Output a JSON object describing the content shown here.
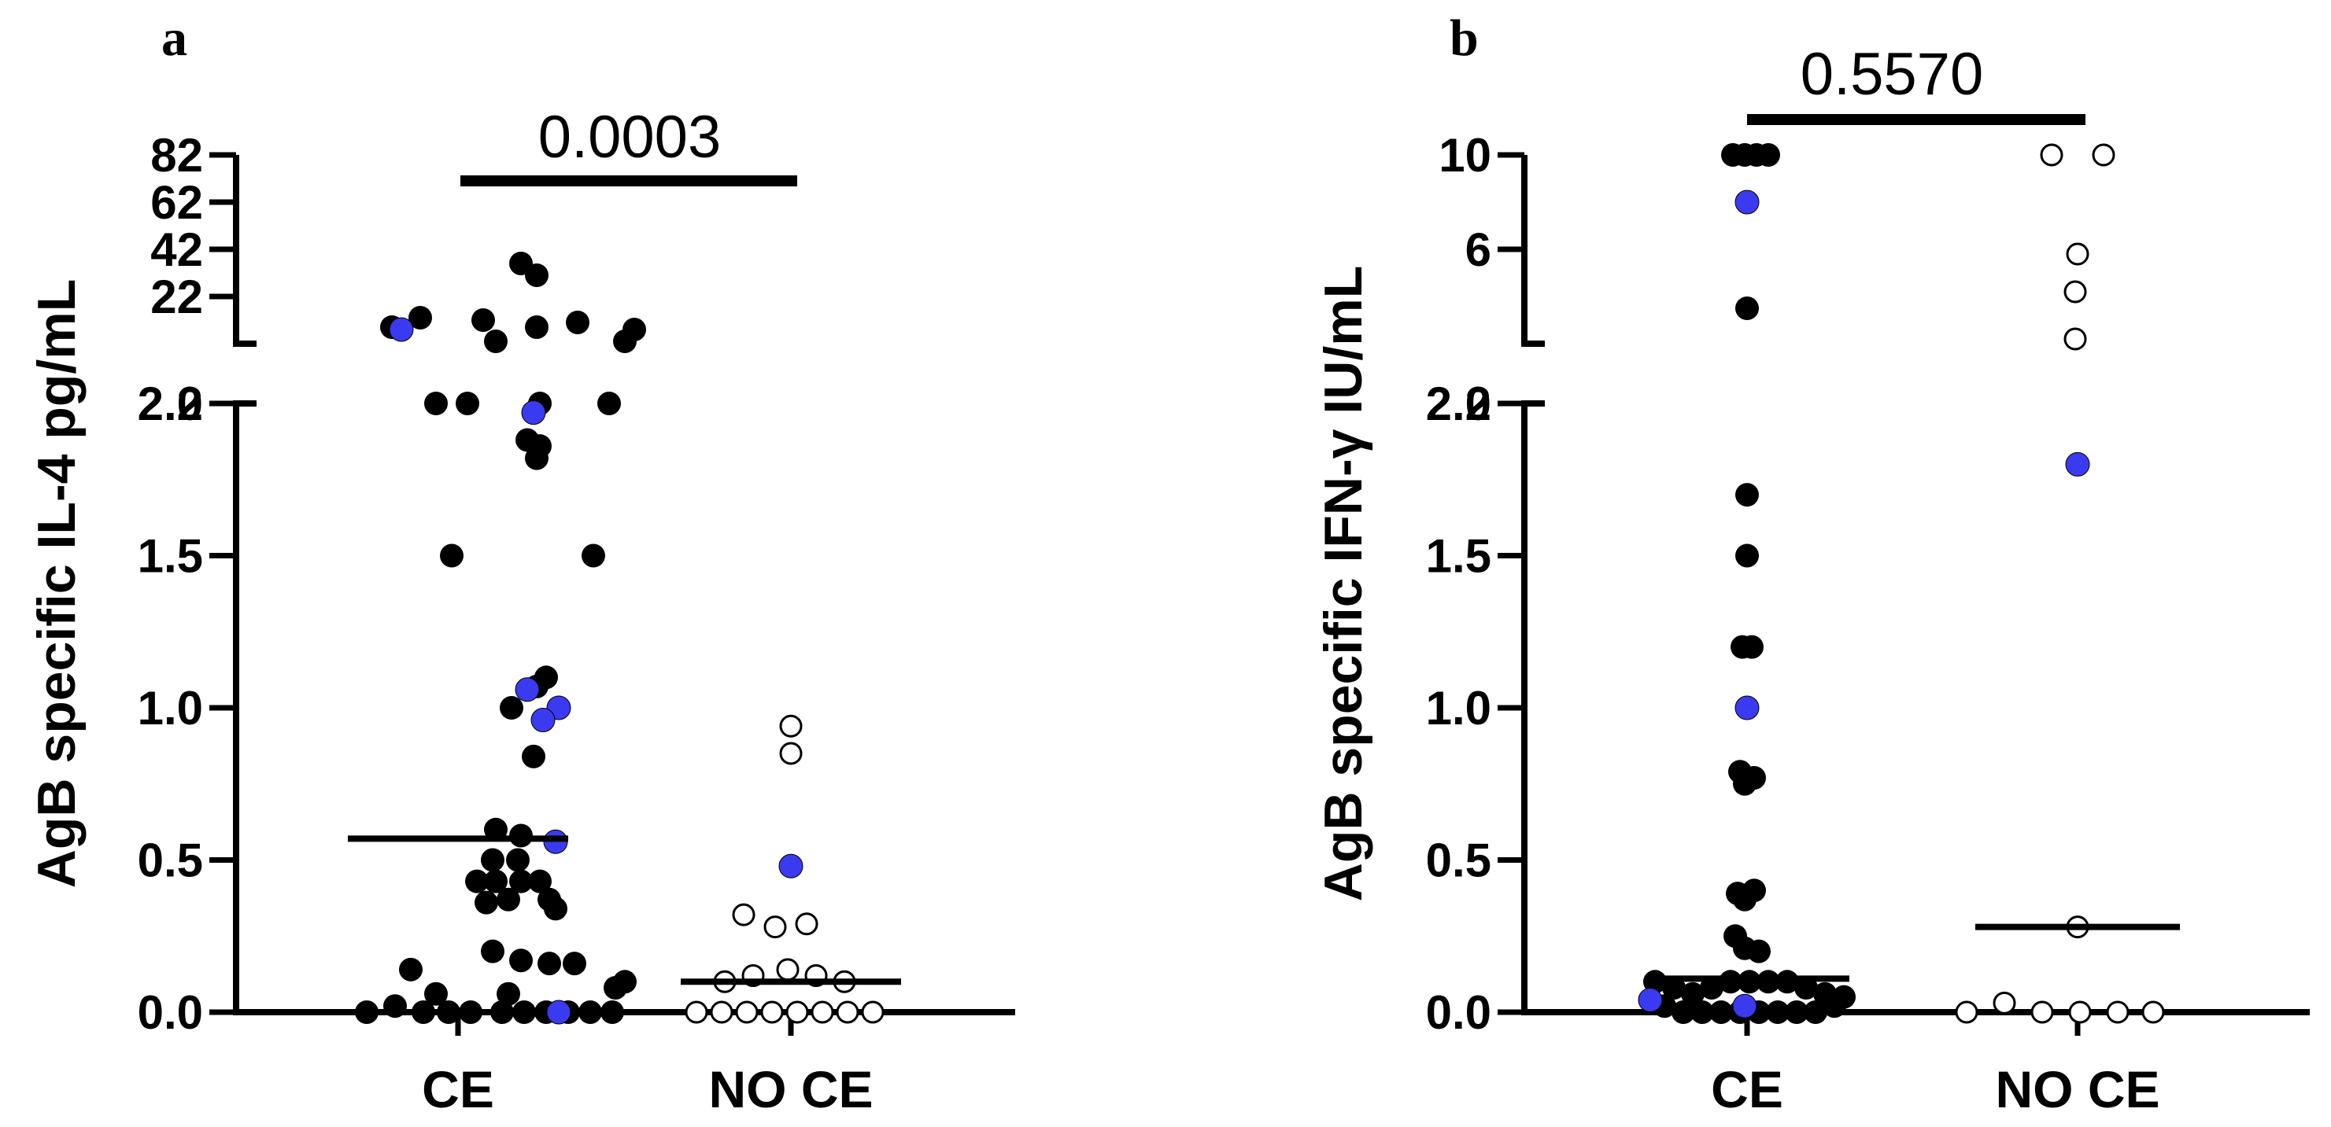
{
  "chart_data": [
    {
      "type": "scatter",
      "panel_label": "a",
      "ylabel": "AgB specific IL-4 pg/mL",
      "categories": [
        "CE",
        "NO CE"
      ],
      "y_axis": {
        "segmented": true,
        "lower": {
          "range": [
            0,
            2
          ],
          "ticks": [
            "0.0",
            "0.5",
            "1.0",
            "1.5",
            "2.0"
          ]
        },
        "upper": {
          "range": [
            2,
            82
          ],
          "ticks": [
            "2",
            "22",
            "42",
            "62",
            "82"
          ]
        }
      },
      "p_value": "0.0003",
      "medians": [
        0.57,
        0.1
      ],
      "series": [
        {
          "name": "",
          "category": "CE",
          "color": "#000000",
          "points": [
            {
              "x": -0.42,
              "y": 9
            },
            {
              "x": -0.24,
              "y": 13
            },
            {
              "x": -0.14,
              "y": 2
            },
            {
              "x": -0.04,
              "y": 1.5
            },
            {
              "x": 0.06,
              "y": 2
            },
            {
              "x": 0.16,
              "y": 12
            },
            {
              "x": 0.24,
              "y": 3
            },
            {
              "x": 0.34,
              "y": 1
            },
            {
              "x": 0.4,
              "y": 36
            },
            {
              "x": 0.5,
              "y": 31
            },
            {
              "x": 0.5,
              "y": 9
            },
            {
              "x": 0.76,
              "y": 11
            },
            {
              "x": 0.86,
              "y": 1.5
            },
            {
              "x": 0.96,
              "y": 2
            },
            {
              "x": 1.06,
              "y": 3
            },
            {
              "x": 1.12,
              "y": 8
            },
            {
              "x": 0.52,
              "y": 2.0
            },
            {
              "x": 0.44,
              "y": 1.88
            },
            {
              "x": 0.52,
              "y": 1.86
            },
            {
              "x": 0.5,
              "y": 1.82
            },
            {
              "x": 0.56,
              "y": 1.1
            },
            {
              "x": 0.5,
              "y": 1.07
            },
            {
              "x": 0.48,
              "y": 0.84
            },
            {
              "x": 0.24,
              "y": 0.6
            },
            {
              "x": 0.4,
              "y": 0.58
            },
            {
              "x": 0.22,
              "y": 0.5
            },
            {
              "x": 0.38,
              "y": 0.5
            },
            {
              "x": 0.12,
              "y": 0.43
            },
            {
              "x": 0.24,
              "y": 0.43
            },
            {
              "x": 0.4,
              "y": 0.43
            },
            {
              "x": 0.52,
              "y": 0.43
            },
            {
              "x": 0.58,
              "y": 0.37
            },
            {
              "x": 0.18,
              "y": 0.36
            },
            {
              "x": 0.32,
              "y": 0.37
            },
            {
              "x": 0.62,
              "y": 0.34
            },
            {
              "x": 0.22,
              "y": 0.2
            },
            {
              "x": 0.4,
              "y": 0.17
            },
            {
              "x": 0.58,
              "y": 0.16
            },
            {
              "x": 0.74,
              "y": 0.16
            },
            {
              "x": -0.3,
              "y": 0.14
            },
            {
              "x": -0.14,
              "y": 0.06
            },
            {
              "x": 0.32,
              "y": 0.06
            },
            {
              "x": 1.0,
              "y": 0.08
            },
            {
              "x": 1.06,
              "y": 0.1
            },
            {
              "x": -0.58,
              "y": 0.0
            },
            {
              "x": -0.4,
              "y": 0.02
            },
            {
              "x": -0.22,
              "y": 0.0
            },
            {
              "x": -0.06,
              "y": 0.0
            },
            {
              "x": 0.08,
              "y": 0.0
            },
            {
              "x": 0.28,
              "y": 0.0
            },
            {
              "x": 0.42,
              "y": 0.0
            },
            {
              "x": 0.56,
              "y": 0.0
            },
            {
              "x": 0.7,
              "y": 0.0
            },
            {
              "x": 0.84,
              "y": 0.0
            },
            {
              "x": 0.98,
              "y": 0.0
            }
          ]
        },
        {
          "name": "",
          "category": "CE",
          "color": "#3a3af0",
          "points": [
            {
              "x": -0.36,
              "y": 8
            },
            {
              "x": 0.64,
              "y": 1
            },
            {
              "x": 0.48,
              "y": 1.97
            },
            {
              "x": 0.44,
              "y": 1.06
            },
            {
              "x": 0.54,
              "y": 0.96
            },
            {
              "x": 0.62,
              "y": 0.56
            },
            {
              "x": 0.64,
              "y": 0.0
            }
          ]
        },
        {
          "name": "",
          "category": "NO CE",
          "color": "#ffffff",
          "hollow": true,
          "points": [
            {
              "x": 0.0,
              "y": 0.94
            },
            {
              "x": 0.0,
              "y": 0.85
            },
            {
              "x": -0.3,
              "y": 0.32
            },
            {
              "x": -0.1,
              "y": 0.28
            },
            {
              "x": 0.1,
              "y": 0.29
            },
            {
              "x": -0.42,
              "y": 0.1
            },
            {
              "x": -0.24,
              "y": 0.12
            },
            {
              "x": -0.02,
              "y": 0.14
            },
            {
              "x": 0.16,
              "y": 0.12
            },
            {
              "x": 0.34,
              "y": 0.1
            },
            {
              "x": -0.6,
              "y": 0.0
            },
            {
              "x": -0.44,
              "y": 0.0
            },
            {
              "x": -0.28,
              "y": 0.0
            },
            {
              "x": -0.12,
              "y": 0.0
            },
            {
              "x": 0.04,
              "y": 0.0
            },
            {
              "x": 0.2,
              "y": 0.0
            },
            {
              "x": 0.36,
              "y": 0.0
            },
            {
              "x": 0.52,
              "y": 0.0
            }
          ]
        },
        {
          "name": "",
          "category": "NO CE",
          "color": "#3a3af0",
          "points": [
            {
              "x": 0.0,
              "y": 0.48
            }
          ]
        }
      ]
    },
    {
      "type": "scatter",
      "panel_label": "b",
      "ylabel": "AgB specific IFN-γ IU/mL",
      "categories": [
        "CE",
        "NO CE"
      ],
      "y_axis": {
        "segmented": true,
        "lower": {
          "range": [
            0,
            2
          ],
          "ticks": [
            "0.0",
            "0.5",
            "1.0",
            "1.5",
            "2.0"
          ]
        },
        "upper": {
          "range": [
            2,
            10
          ],
          "ticks": [
            "2",
            "6",
            "10"
          ]
        }
      },
      "p_value": "0.5570",
      "medians": [
        0.11,
        0.28
      ],
      "series": [
        {
          "name": "",
          "category": "CE",
          "color": "#000000",
          "points": [
            {
              "x": -0.12,
              "y": 10
            },
            {
              "x": -0.02,
              "y": 10
            },
            {
              "x": 0.08,
              "y": 10
            },
            {
              "x": 0.18,
              "y": 10
            },
            {
              "x": 0.0,
              "y": 3.5
            },
            {
              "x": 0.0,
              "y": 1.7
            },
            {
              "x": 0.0,
              "y": 1.5
            },
            {
              "x": -0.04,
              "y": 1.2
            },
            {
              "x": 0.04,
              "y": 1.2
            },
            {
              "x": -0.06,
              "y": 0.79
            },
            {
              "x": 0.06,
              "y": 0.77
            },
            {
              "x": -0.02,
              "y": 0.75
            },
            {
              "x": -0.08,
              "y": 0.39
            },
            {
              "x": 0.06,
              "y": 0.4
            },
            {
              "x": -0.02,
              "y": 0.37
            },
            {
              "x": -0.1,
              "y": 0.25
            },
            {
              "x": -0.02,
              "y": 0.21
            },
            {
              "x": 0.1,
              "y": 0.2
            },
            {
              "x": -0.78,
              "y": 0.1
            },
            {
              "x": -0.62,
              "y": 0.08
            },
            {
              "x": -0.46,
              "y": 0.06
            },
            {
              "x": -0.3,
              "y": 0.08
            },
            {
              "x": -0.14,
              "y": 0.1
            },
            {
              "x": 0.02,
              "y": 0.1
            },
            {
              "x": 0.18,
              "y": 0.1
            },
            {
              "x": 0.34,
              "y": 0.1
            },
            {
              "x": 0.5,
              "y": 0.08
            },
            {
              "x": 0.66,
              "y": 0.06
            },
            {
              "x": 0.82,
              "y": 0.05
            },
            {
              "x": -0.7,
              "y": 0.02
            },
            {
              "x": -0.54,
              "y": 0.0
            },
            {
              "x": -0.38,
              "y": 0.0
            },
            {
              "x": -0.22,
              "y": 0.0
            },
            {
              "x": -0.06,
              "y": 0.0
            },
            {
              "x": 0.1,
              "y": 0.0
            },
            {
              "x": 0.26,
              "y": 0.0
            },
            {
              "x": 0.42,
              "y": 0.0
            },
            {
              "x": 0.58,
              "y": 0.0
            },
            {
              "x": 0.74,
              "y": 0.02
            }
          ]
        },
        {
          "name": "",
          "category": "CE",
          "color": "#3a3af0",
          "points": [
            {
              "x": 0.0,
              "y": 8
            },
            {
              "x": 0.0,
              "y": 1.0
            },
            {
              "x": -0.82,
              "y": 0.04
            },
            {
              "x": -0.02,
              "y": 0.02
            }
          ]
        },
        {
          "name": "",
          "category": "NO CE",
          "color": "#ffffff",
          "hollow": true,
          "points": [
            {
              "x": -0.22,
              "y": 10
            },
            {
              "x": 0.22,
              "y": 10
            },
            {
              "x": 0.0,
              "y": 5.8
            },
            {
              "x": -0.02,
              "y": 4.2
            },
            {
              "x": -0.02,
              "y": 2.2
            },
            {
              "x": 0.0,
              "y": 0.28
            },
            {
              "x": -0.94,
              "y": 0.0
            },
            {
              "x": -0.62,
              "y": 0.03
            },
            {
              "x": -0.3,
              "y": 0.0
            },
            {
              "x": 0.02,
              "y": 0.0
            },
            {
              "x": 0.34,
              "y": 0.0
            },
            {
              "x": 0.64,
              "y": 0.0
            }
          ]
        },
        {
          "name": "",
          "category": "NO CE",
          "color": "#3a3af0",
          "points": [
            {
              "x": 0.0,
              "y": 1.8
            }
          ]
        }
      ]
    }
  ]
}
